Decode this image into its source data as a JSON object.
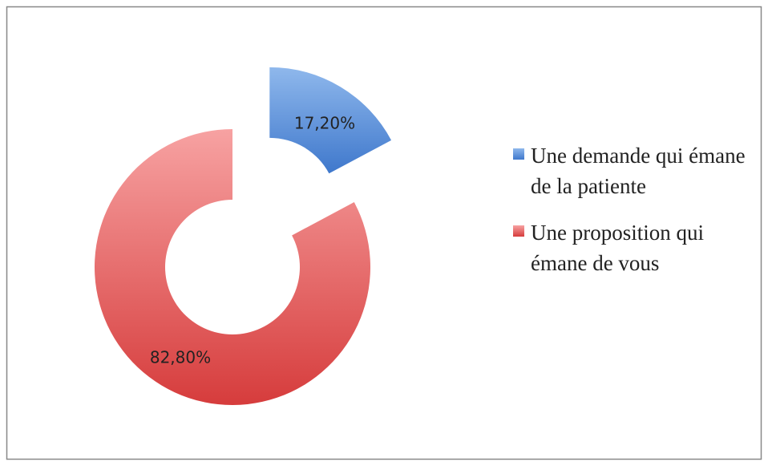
{
  "chart_data": {
    "type": "donut",
    "categories": [
      "Une demande qui émane de la patiente",
      "Une proposition qui émane de vous"
    ],
    "values": [
      17.2,
      82.8
    ],
    "value_labels": [
      "17,20%",
      "82,80%"
    ],
    "colors": [
      "#5b8fdc",
      "#e05a5a"
    ],
    "exploded": [
      true,
      false
    ],
    "legend": "right"
  }
}
